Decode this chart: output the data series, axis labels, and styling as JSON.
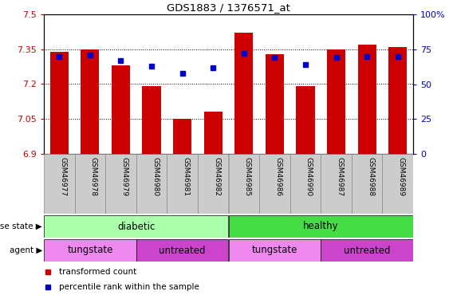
{
  "title": "GDS1883 / 1376571_at",
  "samples": [
    "GSM46977",
    "GSM46978",
    "GSM46979",
    "GSM46980",
    "GSM46981",
    "GSM46982",
    "GSM46985",
    "GSM46986",
    "GSM46990",
    "GSM46987",
    "GSM46988",
    "GSM46989"
  ],
  "bar_values": [
    7.34,
    7.35,
    7.28,
    7.19,
    7.05,
    7.08,
    7.42,
    7.33,
    7.19,
    7.35,
    7.37,
    7.36
  ],
  "percentile_values": [
    70,
    71,
    67,
    63,
    58,
    62,
    72,
    69,
    64,
    69,
    70,
    70
  ],
  "ylim_left": [
    6.9,
    7.5
  ],
  "ylim_right": [
    0,
    100
  ],
  "yticks_left": [
    6.9,
    7.05,
    7.2,
    7.35,
    7.5
  ],
  "yticks_right": [
    0,
    25,
    50,
    75,
    100
  ],
  "ytick_labels_left": [
    "6.9",
    "7.05",
    "7.2",
    "7.35",
    "7.5"
  ],
  "ytick_labels_right": [
    "0",
    "25",
    "50",
    "75",
    "100%"
  ],
  "bar_color": "#cc0000",
  "percentile_color": "#0000cc",
  "bar_width": 0.6,
  "disease_state_groups": [
    {
      "label": "diabetic",
      "start": 0,
      "end": 5,
      "color": "#aaffaa"
    },
    {
      "label": "healthy",
      "start": 6,
      "end": 11,
      "color": "#44dd44"
    }
  ],
  "agent_groups": [
    {
      "label": "tungstate",
      "start": 0,
      "end": 2,
      "color": "#ee88ee"
    },
    {
      "label": "untreated",
      "start": 3,
      "end": 5,
      "color": "#cc44cc"
    },
    {
      "label": "tungstate",
      "start": 6,
      "end": 8,
      "color": "#ee88ee"
    },
    {
      "label": "untreated",
      "start": 9,
      "end": 11,
      "color": "#cc44cc"
    }
  ],
  "legend_items": [
    {
      "label": "transformed count",
      "color": "#cc0000"
    },
    {
      "label": "percentile rank within the sample",
      "color": "#0000cc"
    }
  ],
  "axis_color_left": "#cc0000",
  "axis_color_right": "#0000cc",
  "background_color": "#ffffff",
  "grid_color": "#000000",
  "xtick_bg_color": "#cccccc",
  "xtick_border_color": "#888888"
}
